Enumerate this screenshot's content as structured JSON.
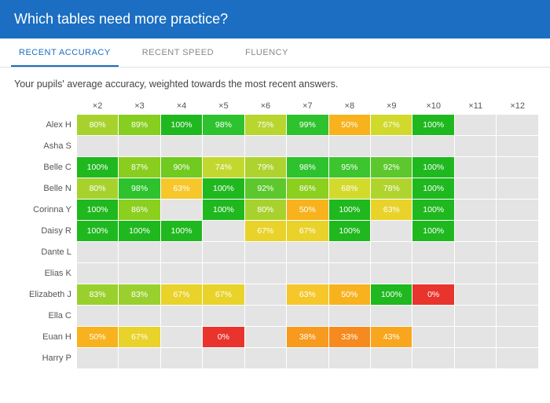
{
  "header": {
    "title": "Which tables need more practice?"
  },
  "tabs": {
    "items": [
      {
        "label": "RECENT ACCURACY",
        "active": true
      },
      {
        "label": "RECENT SPEED",
        "active": false
      },
      {
        "label": "FLUENCY",
        "active": false
      }
    ]
  },
  "subtitle": "Your pupils' average accuracy, weighted towards the most recent answers.",
  "heatmap": {
    "empty_color": "#e4e4e4",
    "text_color": "#ffffff",
    "columns": [
      "×2",
      "×3",
      "×4",
      "×5",
      "×6",
      "×7",
      "×8",
      "×9",
      "×10",
      "×11",
      "×12"
    ],
    "rows": [
      {
        "name": "Alex H",
        "cells": [
          {
            "v": "80%",
            "c": "#a7d22e"
          },
          {
            "v": "89%",
            "c": "#86ce1f"
          },
          {
            "v": "100%",
            "c": "#1fb81f"
          },
          {
            "v": "98%",
            "c": "#2ec22e"
          },
          {
            "v": "75%",
            "c": "#b8d530"
          },
          {
            "v": "99%",
            "c": "#2ec22e"
          },
          {
            "v": "50%",
            "c": "#f7b21e"
          },
          {
            "v": "67%",
            "c": "#d0d92c"
          },
          {
            "v": "100%",
            "c": "#1fb81f"
          },
          null,
          null
        ]
      },
      {
        "name": "Asha S",
        "cells": [
          null,
          null,
          null,
          null,
          null,
          null,
          null,
          null,
          null,
          null,
          null
        ]
      },
      {
        "name": "Belle C",
        "cells": [
          {
            "v": "100%",
            "c": "#1fb81f"
          },
          {
            "v": "87%",
            "c": "#89ce1f"
          },
          {
            "v": "90%",
            "c": "#70ca1f"
          },
          {
            "v": "74%",
            "c": "#c2d82e"
          },
          {
            "v": "79%",
            "c": "#aed32e"
          },
          {
            "v": "98%",
            "c": "#2ec22e"
          },
          {
            "v": "95%",
            "c": "#3cc52e"
          },
          {
            "v": "92%",
            "c": "#5cc82e"
          },
          {
            "v": "100%",
            "c": "#1fb81f"
          },
          null,
          null
        ]
      },
      {
        "name": "Belle N",
        "cells": [
          {
            "v": "80%",
            "c": "#a7d22e"
          },
          {
            "v": "98%",
            "c": "#2ec22e"
          },
          {
            "v": "63%",
            "c": "#f5c72a"
          },
          {
            "v": "100%",
            "c": "#1fb81f"
          },
          {
            "v": "92%",
            "c": "#5cc82e"
          },
          {
            "v": "86%",
            "c": "#8bcf1f"
          },
          {
            "v": "68%",
            "c": "#d2da2c"
          },
          {
            "v": "78%",
            "c": "#b0d42e"
          },
          {
            "v": "100%",
            "c": "#1fb81f"
          },
          null,
          null
        ]
      },
      {
        "name": "Corinna Y",
        "cells": [
          {
            "v": "100%",
            "c": "#1fb81f"
          },
          {
            "v": "86%",
            "c": "#8bcf1f"
          },
          null,
          {
            "v": "100%",
            "c": "#1fb81f"
          },
          {
            "v": "80%",
            "c": "#a7d22e"
          },
          {
            "v": "50%",
            "c": "#f7b21e"
          },
          {
            "v": "100%",
            "c": "#1fb81f"
          },
          {
            "v": "63%",
            "c": "#e9d22a"
          },
          {
            "v": "100%",
            "c": "#1fb81f"
          },
          null,
          null
        ]
      },
      {
        "name": "Daisy R",
        "cells": [
          {
            "v": "100%",
            "c": "#1fb81f"
          },
          {
            "v": "100%",
            "c": "#1fb81f"
          },
          {
            "v": "100%",
            "c": "#1fb81f"
          },
          null,
          {
            "v": "67%",
            "c": "#e9d22a"
          },
          {
            "v": "67%",
            "c": "#e9d22a"
          },
          {
            "v": "100%",
            "c": "#1fb81f"
          },
          null,
          {
            "v": "100%",
            "c": "#1fb81f"
          },
          null,
          null
        ]
      },
      {
        "name": "Dante L",
        "cells": [
          null,
          null,
          null,
          null,
          null,
          null,
          null,
          null,
          null,
          null,
          null
        ]
      },
      {
        "name": "Elias K",
        "cells": [
          null,
          null,
          null,
          null,
          null,
          null,
          null,
          null,
          null,
          null,
          null
        ]
      },
      {
        "name": "Elizabeth J",
        "cells": [
          {
            "v": "83%",
            "c": "#9ad02e"
          },
          {
            "v": "83%",
            "c": "#9ad02e"
          },
          {
            "v": "67%",
            "c": "#e9d22a"
          },
          {
            "v": "67%",
            "c": "#e9d22a"
          },
          null,
          {
            "v": "63%",
            "c": "#f5c72a"
          },
          {
            "v": "50%",
            "c": "#f7b21e"
          },
          {
            "v": "100%",
            "c": "#1fb81f"
          },
          {
            "v": "0%",
            "c": "#e8342c"
          },
          null,
          null
        ]
      },
      {
        "name": "Ella C",
        "cells": [
          null,
          null,
          null,
          null,
          null,
          null,
          null,
          null,
          null,
          null,
          null
        ]
      },
      {
        "name": "Euan H",
        "cells": [
          {
            "v": "50%",
            "c": "#f7b21e"
          },
          {
            "v": "67%",
            "c": "#e9d22a"
          },
          null,
          {
            "v": "0%",
            "c": "#e8342c"
          },
          null,
          {
            "v": "38%",
            "c": "#f79a1e"
          },
          {
            "v": "33%",
            "c": "#f68a1e"
          },
          {
            "v": "43%",
            "c": "#f7a61e"
          },
          null,
          null,
          null
        ]
      },
      {
        "name": "Harry P",
        "cells": [
          null,
          null,
          null,
          null,
          null,
          null,
          null,
          null,
          null,
          null,
          null
        ]
      }
    ]
  }
}
